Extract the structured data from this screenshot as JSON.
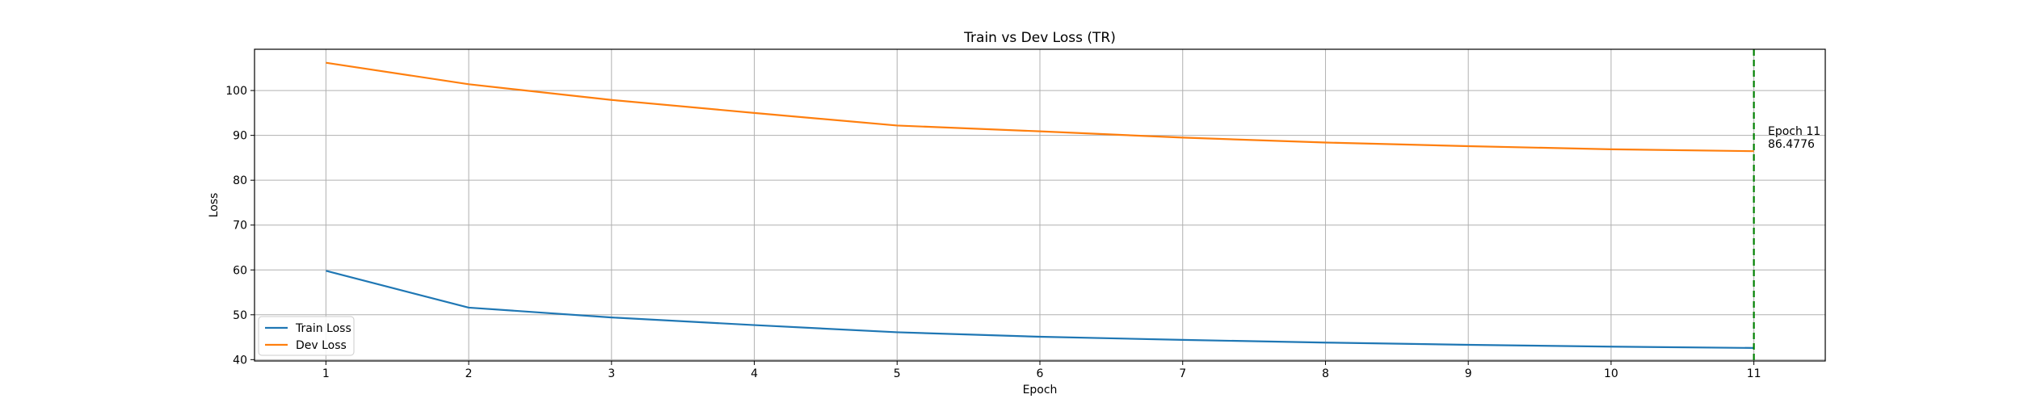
{
  "chart_data": {
    "type": "line",
    "title": "Train vs Dev Loss (TR)",
    "xlabel": "Epoch",
    "ylabel": "Loss",
    "x": [
      1,
      2,
      3,
      4,
      5,
      6,
      7,
      8,
      9,
      10,
      11
    ],
    "x_ticks": [
      "1",
      "2",
      "3",
      "4",
      "5",
      "6",
      "7",
      "8",
      "9",
      "10",
      "11"
    ],
    "y_ticks": [
      "40",
      "50",
      "60",
      "70",
      "80",
      "90",
      "100"
    ],
    "xlim": [
      0.5,
      11.5
    ],
    "ylim": [
      39.7,
      109.2
    ],
    "grid": true,
    "legend_position": "lower-left",
    "series": [
      {
        "name": "Train Loss",
        "color": "#1f77b4",
        "values": [
          59.8,
          51.6,
          49.4,
          47.7,
          46.1,
          45.1,
          44.4,
          43.8,
          43.3,
          42.9,
          42.6
        ]
      },
      {
        "name": "Dev Loss",
        "color": "#ff7f0e",
        "values": [
          106.2,
          101.4,
          97.9,
          95.0,
          92.2,
          90.9,
          89.5,
          88.4,
          87.6,
          86.9,
          86.4776
        ]
      }
    ],
    "vline": {
      "x": 11,
      "color": "#008000",
      "style": "dashed"
    },
    "annotation": {
      "line1": "Epoch 11",
      "line2": "86.4776"
    }
  }
}
